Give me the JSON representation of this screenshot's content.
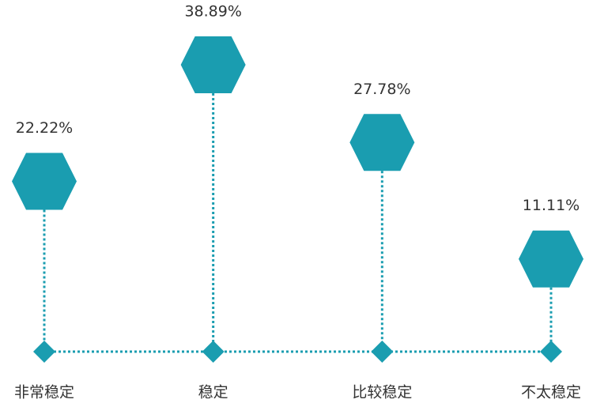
{
  "chart_data": {
    "type": "lollipop",
    "categories": [
      "非常稳定",
      "稳定",
      "比较稳定",
      "不太稳定"
    ],
    "values": [
      22.22,
      38.89,
      27.78,
      11.11
    ],
    "value_labels": [
      "22.22%",
      "38.89%",
      "27.78%",
      "11.11%"
    ],
    "color": "#1a9db0"
  }
}
